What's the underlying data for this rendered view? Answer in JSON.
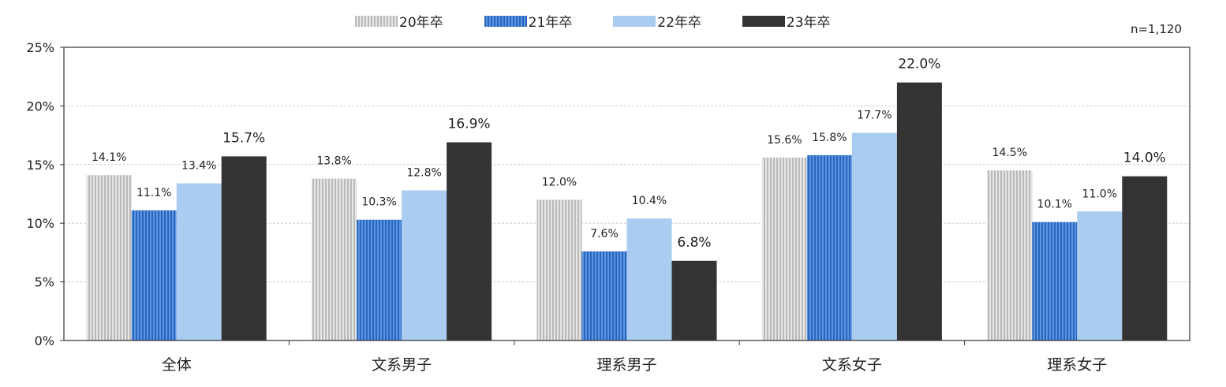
{
  "chart_data": {
    "type": "bar",
    "categories": [
      "全体",
      "文系男子",
      "理系男子",
      "文系女子",
      "理系女子"
    ],
    "series": [
      {
        "name": "20年卒",
        "values": [
          14.1,
          13.8,
          12.0,
          15.6,
          14.5
        ],
        "color": "#cfcfcf",
        "pattern": "vertical-stripes-gray"
      },
      {
        "name": "21年卒",
        "values": [
          11.1,
          10.3,
          7.6,
          15.8,
          10.1
        ],
        "color": "#3f7fd4",
        "pattern": "vertical-stripes-blue"
      },
      {
        "name": "22年卒",
        "values": [
          13.4,
          12.8,
          10.4,
          17.7,
          11.0
        ],
        "color": "#aaccf0",
        "pattern": "solid"
      },
      {
        "name": "23年卒",
        "values": [
          15.7,
          16.9,
          6.8,
          22.0,
          14.0
        ],
        "color": "#333333",
        "pattern": "solid"
      }
    ],
    "value_labels": [
      [
        "14.1%",
        "13.8%",
        "12.0%",
        "15.6%",
        "14.5%"
      ],
      [
        "11.1%",
        "10.3%",
        "7.6%",
        "15.8%",
        "10.1%"
      ],
      [
        "13.4%",
        "12.8%",
        "10.4%",
        "17.7%",
        "11.0%"
      ],
      [
        "15.7%",
        "16.9%",
        "6.8%",
        "22.0%",
        "14.0%"
      ]
    ],
    "ylim": [
      0,
      25
    ],
    "yticks": [
      0,
      5,
      10,
      15,
      20,
      25
    ],
    "ytick_labels": [
      "0%",
      "5%",
      "10%",
      "15%",
      "20%",
      "25%"
    ],
    "grid": true,
    "legend_position": "top-center",
    "note": "n=1,120"
  }
}
